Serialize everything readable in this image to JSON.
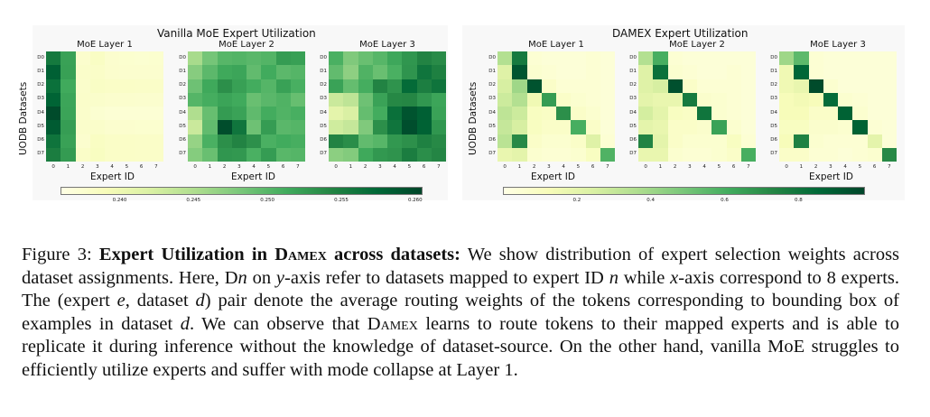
{
  "chart_data": [
    {
      "type": "heatmap",
      "group_title": "Vanilla MoE Expert Utilization",
      "title": "MoE Layer 1",
      "xlabel": "Expert ID",
      "ylabel": "UODB Datasets",
      "x_ticks": [
        "0",
        "1",
        "2",
        "3",
        "4",
        "5",
        "6",
        "7"
      ],
      "y_ticks": [
        "D0",
        "D1",
        "D2",
        "D3",
        "D4",
        "D5",
        "D6",
        "D7"
      ],
      "values": [
        [
          0.2556,
          0.2521,
          0.2377,
          0.2383,
          0.2376,
          0.2375,
          0.2374,
          0.2375
        ],
        [
          0.2581,
          0.2522,
          0.2379,
          0.238,
          0.2377,
          0.2376,
          0.2376,
          0.2376
        ],
        [
          0.2565,
          0.2514,
          0.2378,
          0.2382,
          0.2381,
          0.2381,
          0.238,
          0.238
        ],
        [
          0.2578,
          0.2518,
          0.2379,
          0.2378,
          0.2377,
          0.2377,
          0.2376,
          0.2376
        ],
        [
          0.26,
          0.2519,
          0.2378,
          0.2374,
          0.2372,
          0.2372,
          0.2372,
          0.2372
        ],
        [
          0.2586,
          0.2524,
          0.2378,
          0.2379,
          0.2376,
          0.2376,
          0.2375,
          0.2375
        ],
        [
          0.2561,
          0.2521,
          0.2376,
          0.2384,
          0.2381,
          0.2381,
          0.238,
          0.238
        ],
        [
          0.2551,
          0.2526,
          0.238,
          0.2385,
          0.2381,
          0.2381,
          0.238,
          0.238
        ]
      ]
    },
    {
      "type": "heatmap",
      "group_title": "Vanilla MoE Expert Utilization",
      "title": "MoE Layer 2",
      "xlabel": "Expert ID",
      "ylabel": "",
      "x_ticks": [
        "0",
        "1",
        "2",
        "3",
        "4",
        "5",
        "6",
        "7"
      ],
      "y_ticks": [
        "D0",
        "D1",
        "D2",
        "D3",
        "D4",
        "D5",
        "D6",
        "D7"
      ],
      "values": [
        [
          0.2455,
          0.2484,
          0.2501,
          0.2503,
          0.2499,
          0.2503,
          0.2525,
          0.2522
        ],
        [
          0.2474,
          0.2498,
          0.2515,
          0.2518,
          0.2495,
          0.2513,
          0.2498,
          0.2502
        ],
        [
          0.2488,
          0.2515,
          0.2535,
          0.2522,
          0.2512,
          0.2502,
          0.2521,
          0.2509
        ],
        [
          0.2502,
          0.2511,
          0.2519,
          0.2514,
          0.2491,
          0.2499,
          0.2505,
          0.2492
        ],
        [
          0.245,
          0.2492,
          0.2526,
          0.252,
          0.2496,
          0.2512,
          0.2504,
          0.2509
        ],
        [
          0.2432,
          0.2495,
          0.2598,
          0.256,
          0.2488,
          0.2525,
          0.2499,
          0.2502
        ],
        [
          0.2465,
          0.2508,
          0.2535,
          0.2545,
          0.2534,
          0.2508,
          0.2513,
          0.251
        ],
        [
          0.2475,
          0.2491,
          0.253,
          0.2528,
          0.2508,
          0.2525,
          0.25,
          0.2502
        ]
      ]
    },
    {
      "type": "heatmap",
      "group_title": "Vanilla MoE Expert Utilization",
      "title": "MoE Layer 3",
      "xlabel": "",
      "ylabel": "",
      "x_ticks": [
        "0",
        "1",
        "2",
        "3",
        "4",
        "5",
        "6",
        "7"
      ],
      "y_ticks": [
        "D0",
        "D1",
        "D2",
        "D3",
        "D4",
        "D5",
        "D6",
        "D7"
      ],
      "values": [
        [
          0.2508,
          0.2478,
          0.2491,
          0.2501,
          0.2516,
          0.253,
          0.2545,
          0.2538
        ],
        [
          0.2495,
          0.247,
          0.2505,
          0.2491,
          0.2508,
          0.2531,
          0.256,
          0.2548
        ],
        [
          0.252,
          0.2493,
          0.2511,
          0.2545,
          0.2532,
          0.2571,
          0.255,
          0.2561
        ],
        [
          0.2432,
          0.244,
          0.2488,
          0.252,
          0.2541,
          0.2542,
          0.2529,
          0.2518
        ],
        [
          0.241,
          0.242,
          0.2493,
          0.2512,
          0.2566,
          0.2592,
          0.2581,
          0.252
        ],
        [
          0.2428,
          0.2435,
          0.2478,
          0.2535,
          0.256,
          0.2597,
          0.258,
          0.253
        ],
        [
          0.2545,
          0.2537,
          0.2495,
          0.2501,
          0.2528,
          0.2534,
          0.2547,
          0.254
        ],
        [
          0.2471,
          0.2476,
          0.2515,
          0.2528,
          0.2532,
          0.2551,
          0.2536,
          0.2543
        ]
      ]
    },
    {
      "type": "heatmap",
      "group_title": "DAMEX Expert Utilization",
      "title": "MoE Layer 1",
      "xlabel": "Expert ID",
      "ylabel": "UODB Datasets",
      "x_ticks": [
        "0",
        "1",
        "2",
        "3",
        "4",
        "5",
        "6",
        "7"
      ],
      "y_ticks": [
        "D0",
        "D1",
        "D2",
        "D3",
        "D4",
        "D5",
        "D6",
        "D7"
      ],
      "values": [
        [
          0.35,
          0.78,
          0.05,
          0.04,
          0.04,
          0.04,
          0.05,
          0.04
        ],
        [
          0.22,
          0.92,
          0.06,
          0.05,
          0.04,
          0.04,
          0.05,
          0.04
        ],
        [
          0.25,
          0.4,
          0.93,
          0.08,
          0.05,
          0.05,
          0.05,
          0.04
        ],
        [
          0.28,
          0.35,
          0.15,
          0.66,
          0.08,
          0.06,
          0.05,
          0.04
        ],
        [
          0.32,
          0.28,
          0.1,
          0.09,
          0.7,
          0.08,
          0.06,
          0.04
        ],
        [
          0.3,
          0.25,
          0.1,
          0.08,
          0.08,
          0.6,
          0.08,
          0.04
        ],
        [
          0.33,
          0.72,
          0.08,
          0.06,
          0.06,
          0.08,
          0.22,
          0.05
        ],
        [
          0.18,
          0.2,
          0.06,
          0.05,
          0.05,
          0.06,
          0.1,
          0.58
        ]
      ]
    },
    {
      "type": "heatmap",
      "group_title": "DAMEX Expert Utilization",
      "title": "MoE Layer 2",
      "xlabel": "Expert ID",
      "ylabel": "",
      "x_ticks": [
        "0",
        "1",
        "2",
        "3",
        "4",
        "5",
        "6",
        "7"
      ],
      "y_ticks": [
        "D0",
        "D1",
        "D2",
        "D3",
        "D4",
        "D5",
        "D6",
        "D7"
      ],
      "values": [
        [
          0.35,
          0.6,
          0.05,
          0.04,
          0.04,
          0.04,
          0.04,
          0.04
        ],
        [
          0.22,
          0.82,
          0.06,
          0.05,
          0.04,
          0.04,
          0.05,
          0.04
        ],
        [
          0.22,
          0.25,
          0.94,
          0.08,
          0.05,
          0.05,
          0.05,
          0.04
        ],
        [
          0.2,
          0.18,
          0.18,
          0.78,
          0.07,
          0.06,
          0.05,
          0.04
        ],
        [
          0.26,
          0.2,
          0.1,
          0.09,
          0.8,
          0.06,
          0.05,
          0.04
        ],
        [
          0.2,
          0.18,
          0.08,
          0.08,
          0.07,
          0.64,
          0.06,
          0.04
        ],
        [
          0.74,
          0.2,
          0.08,
          0.06,
          0.06,
          0.06,
          0.1,
          0.05
        ],
        [
          0.18,
          0.18,
          0.06,
          0.05,
          0.05,
          0.06,
          0.08,
          0.6
        ]
      ]
    },
    {
      "type": "heatmap",
      "group_title": "DAMEX Expert Utilization",
      "title": "MoE Layer 3",
      "xlabel": "",
      "ylabel": "",
      "x_ticks": [
        "0",
        "1",
        "2",
        "3",
        "4",
        "5",
        "6",
        "7"
      ],
      "y_ticks": [
        "D0",
        "D1",
        "D2",
        "D3",
        "D4",
        "D5",
        "D6",
        "D7"
      ],
      "values": [
        [
          0.4,
          0.55,
          0.05,
          0.04,
          0.04,
          0.04,
          0.04,
          0.04
        ],
        [
          0.15,
          0.86,
          0.05,
          0.04,
          0.04,
          0.04,
          0.04,
          0.04
        ],
        [
          0.15,
          0.18,
          0.96,
          0.06,
          0.04,
          0.04,
          0.04,
          0.04
        ],
        [
          0.12,
          0.14,
          0.12,
          0.84,
          0.06,
          0.05,
          0.04,
          0.04
        ],
        [
          0.12,
          0.12,
          0.08,
          0.08,
          0.88,
          0.06,
          0.04,
          0.04
        ],
        [
          0.1,
          0.1,
          0.07,
          0.07,
          0.06,
          0.88,
          0.05,
          0.04
        ],
        [
          0.12,
          0.75,
          0.06,
          0.05,
          0.05,
          0.05,
          0.2,
          0.04
        ],
        [
          0.08,
          0.08,
          0.05,
          0.05,
          0.04,
          0.05,
          0.06,
          0.72
        ]
      ]
    }
  ],
  "colorbars": {
    "vanilla": {
      "min": 0.236,
      "max": 0.2605,
      "ticks": [
        "0.240",
        "0.245",
        "0.250",
        "0.255",
        "0.260"
      ],
      "tick_values": [
        0.24,
        0.245,
        0.25,
        0.255,
        0.26
      ]
    },
    "damex": {
      "min": 0.0,
      "max": 0.98,
      "ticks": [
        "0.2",
        "0.4",
        "0.6",
        "0.8"
      ],
      "tick_values": [
        0.2,
        0.4,
        0.6,
        0.8
      ]
    }
  },
  "colormap": [
    "#ffffe5",
    "#f7fcb9",
    "#d9f0a3",
    "#addd8e",
    "#78c679",
    "#41ab5d",
    "#238443",
    "#006837",
    "#004529"
  ],
  "caption": {
    "label": "Figure 3:",
    "bold_title_a": "Expert Utilization in D",
    "bold_title_sc": "amex",
    "bold_title_b": " across datasets:",
    "t1": " We show distribution of expert selection weights across dataset assignments. Here, D",
    "v_n1": "n",
    "t2": " on ",
    "v_y": "y",
    "t3": "-axis refer to datasets mapped to expert ID ",
    "v_n2": "n",
    "t4": " while ",
    "v_x": "x",
    "t5": "-axis correspond to 8 experts. The (expert ",
    "v_e": "e",
    "t6": ", dataset ",
    "v_d1": "d",
    "t7": ") pair denote the average routing weights of the tokens corresponding to bounding box of examples in dataset ",
    "v_d2": "d",
    "t8": ". We can observe that D",
    "sc2": "amex",
    "t9": " learns to route tokens to their mapped experts and is able to replicate it during inference without the knowledge of dataset-source. On the other hand, vanilla MoE struggles to efficiently utilize experts and suffer with mode collapse at Layer 1."
  }
}
